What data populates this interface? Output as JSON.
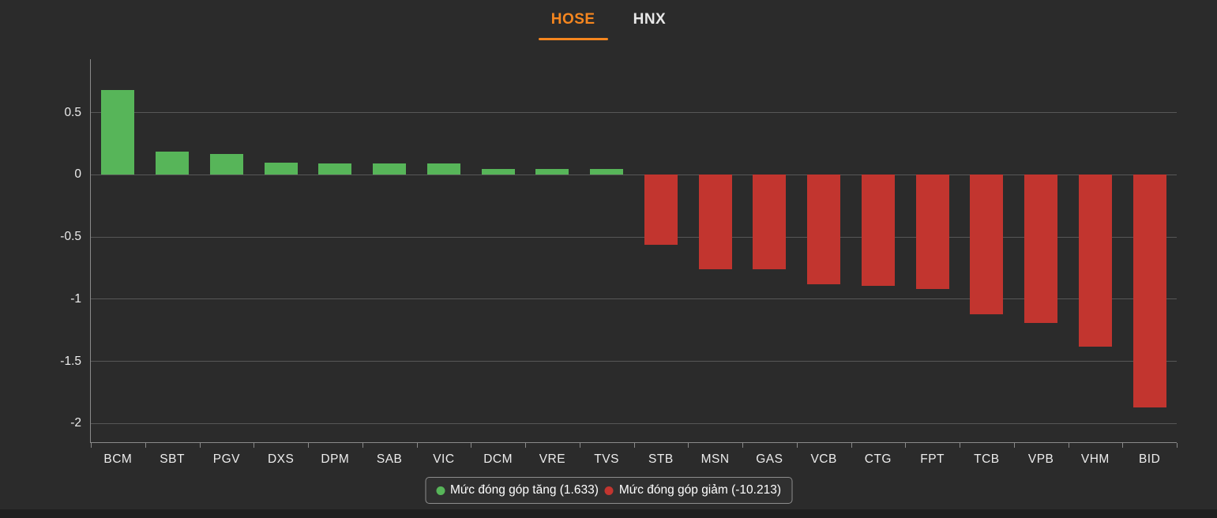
{
  "tabs": [
    {
      "label": "HOSE",
      "active": true
    },
    {
      "label": "HNX",
      "active": false
    }
  ],
  "colors": {
    "background": "#2b2b2b",
    "accent_orange": "#f5861f",
    "positive_green": "#57b559",
    "negative_red": "#c2352f",
    "gridline": "#575757",
    "axis": "#8a8a8a",
    "text": "#ededed"
  },
  "chart_data": {
    "type": "bar",
    "title": "",
    "xlabel": "",
    "ylabel": "",
    "categories": [
      "BCM",
      "SBT",
      "PGV",
      "DXS",
      "DPM",
      "SAB",
      "VIC",
      "DCM",
      "VRE",
      "TVS",
      "STB",
      "MSN",
      "GAS",
      "VCB",
      "CTG",
      "FPT",
      "TCB",
      "VPB",
      "VHM",
      "BID"
    ],
    "values": [
      0.68,
      0.19,
      0.17,
      0.1,
      0.09,
      0.09,
      0.09,
      0.05,
      0.05,
      0.05,
      -0.56,
      -0.76,
      -0.76,
      -0.88,
      -0.89,
      -0.92,
      -1.12,
      -1.19,
      -1.38,
      -1.87
    ],
    "ylim": [
      -2.15,
      0.93
    ],
    "yticks": [
      0.5,
      0,
      -0.5,
      -1,
      -1.5,
      -2
    ],
    "ytick_labels": [
      "0.5",
      "0",
      "-0.5",
      "-1",
      "-1.5",
      "-2"
    ],
    "grid": true,
    "legend_position": "bottom",
    "legend": [
      {
        "label": "Mức đóng góp tăng (1.633)",
        "color": "#57b559"
      },
      {
        "label": "Mức đóng góp giảm (-10.213)",
        "color": "#c2352f"
      }
    ]
  }
}
